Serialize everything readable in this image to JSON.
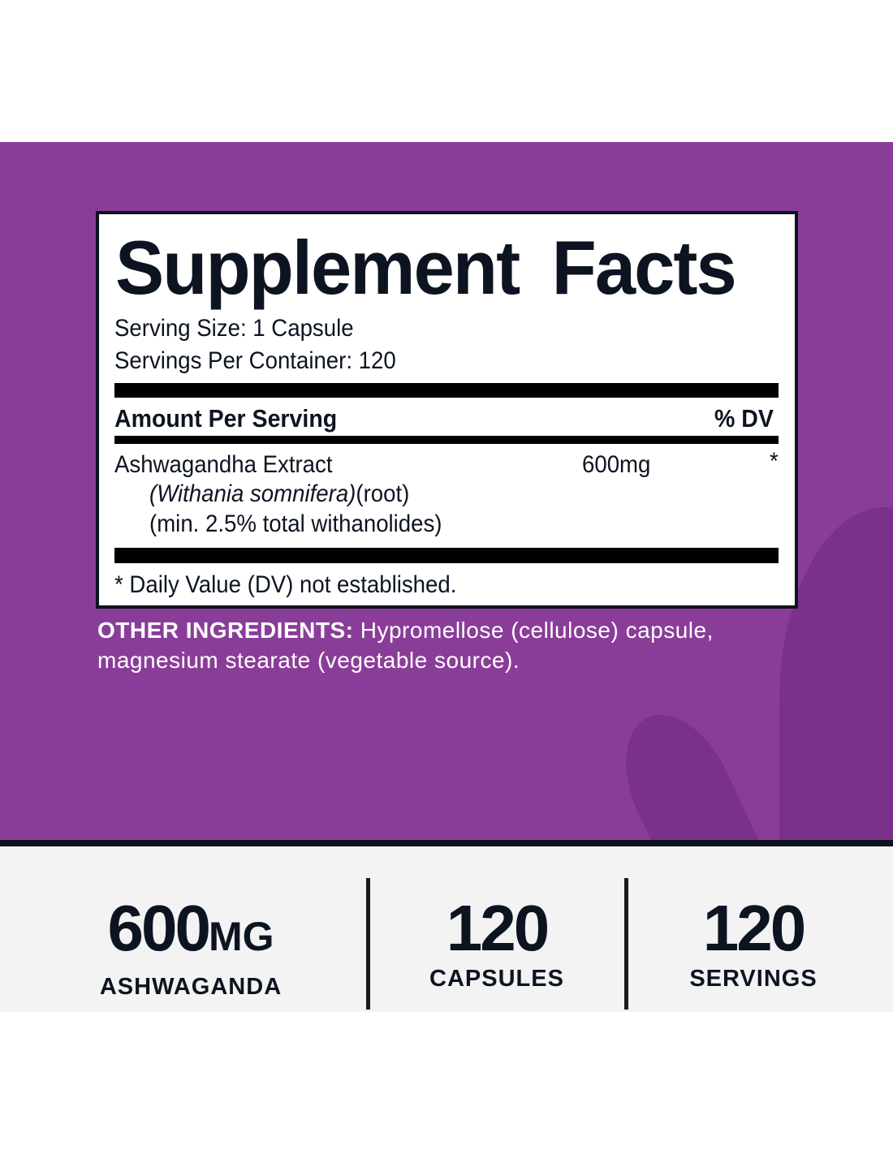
{
  "colors": {
    "background": "#8a3d98",
    "label_border": "#0d1421",
    "band": "#f3f3f3",
    "text": "#0d1421"
  },
  "facts": {
    "title": "Supplement Facts",
    "serving_size": "Serving Size: 1 Capsule",
    "servings_per_container": "Servings Per Container: 120",
    "header_amount": "Amount Per Serving",
    "header_dv": "% DV",
    "ingredient": {
      "name": "Ashwagandha Extract",
      "latin": "(Withania somnifera)",
      "part": "(root)",
      "standard": "(min. 2.5% total withanolides)",
      "amount": "600mg",
      "dv": "*"
    },
    "footnote": "* Daily Value (DV) not established."
  },
  "other_ingredients": {
    "label": "OTHER INGREDIENTS:",
    "text": " Hypromellose (cellulose) capsule, magnesium stearate (vegetable source)."
  },
  "stats": [
    {
      "value": "600",
      "unit": "MG",
      "label": "ASHWAGANDA"
    },
    {
      "value": "120",
      "label": "CAPSULES"
    },
    {
      "value": "120",
      "label": "SERVINGS"
    }
  ]
}
